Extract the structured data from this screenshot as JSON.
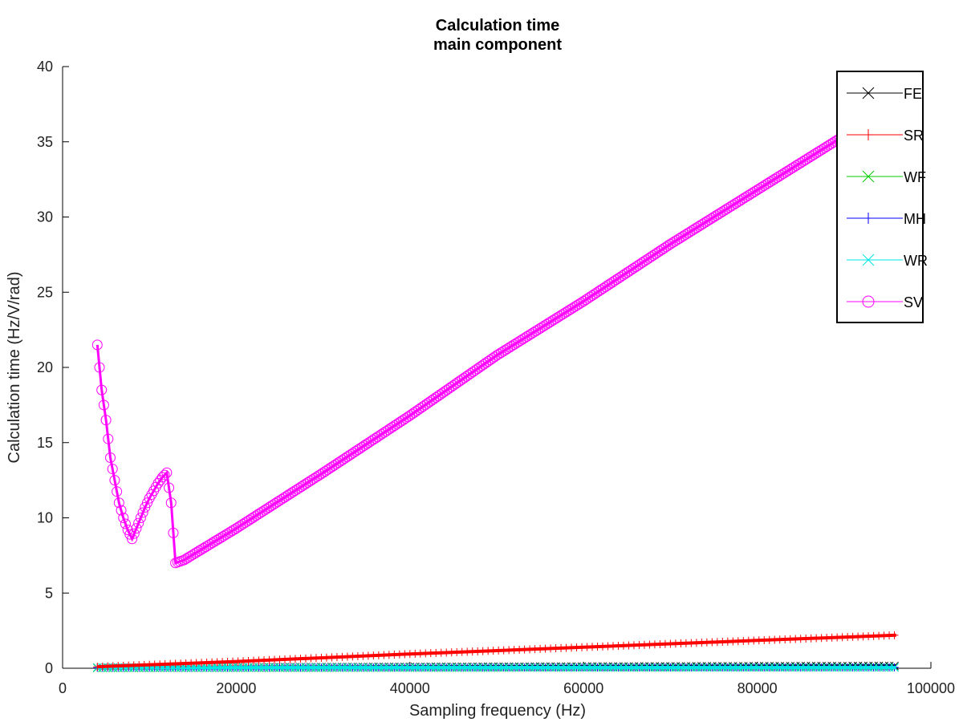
{
  "chart_data": {
    "type": "line",
    "title": "Calculation time",
    "subtitle": "main component",
    "xlabel": "Sampling frequency (Hz)",
    "ylabel": "Calculation time (Hz/V/rad)",
    "xlim": [
      0,
      100000
    ],
    "ylim": [
      0,
      40
    ],
    "xticks": [
      0,
      20000,
      40000,
      60000,
      80000,
      100000
    ],
    "xtick_labels": [
      "0",
      "20000",
      "40000",
      "60000",
      "80000",
      "100000"
    ],
    "yticks": [
      0,
      5,
      10,
      15,
      20,
      25,
      30,
      35,
      40
    ],
    "ytick_labels": [
      "0",
      "5",
      "10",
      "15",
      "20",
      "25",
      "30",
      "35",
      "40"
    ],
    "grid": false,
    "legend_position": "top-right",
    "series": [
      {
        "name": "FE",
        "color": "#000000",
        "marker": "x",
        "x": [
          4000,
          96000
        ],
        "y": [
          0.05,
          0.15
        ]
      },
      {
        "name": "SR",
        "color": "#ff0000",
        "marker": "+",
        "x": [
          4000,
          20000,
          40000,
          60000,
          80000,
          96000
        ],
        "y": [
          0.1,
          0.45,
          0.95,
          1.4,
          1.85,
          2.2
        ]
      },
      {
        "name": "WF",
        "color": "#00cc00",
        "marker": "x",
        "x": [
          4000,
          96000
        ],
        "y": [
          0.02,
          0.05
        ]
      },
      {
        "name": "MH",
        "color": "#0000ff",
        "marker": "+",
        "x": [
          4000,
          96000
        ],
        "y": [
          0.03,
          0.06
        ]
      },
      {
        "name": "WR",
        "color": "#00e5e5",
        "marker": "x",
        "x": [
          4000,
          96000
        ],
        "y": [
          0.05,
          0.05
        ]
      },
      {
        "name": "SV",
        "color": "#ff00ff",
        "marker": "o",
        "x": [
          4000,
          4500,
          5000,
          5500,
          6000,
          6500,
          7000,
          7500,
          8000,
          8500,
          9000,
          9500,
          10000,
          10500,
          11000,
          11500,
          12000,
          12500,
          13000,
          14000,
          16000,
          20000,
          30000,
          40000,
          50000,
          60000,
          70000,
          80000,
          90000,
          96000
        ],
        "y": [
          21.5,
          18.5,
          16.5,
          14.0,
          12.5,
          11.0,
          10.0,
          9.2,
          8.6,
          9.3,
          10.0,
          10.7,
          11.3,
          11.8,
          12.3,
          12.7,
          13.0,
          11.0,
          7.0,
          7.2,
          7.9,
          9.3,
          13.0,
          16.8,
          20.8,
          24.4,
          28.2,
          31.8,
          35.4,
          37.6
        ]
      }
    ]
  }
}
